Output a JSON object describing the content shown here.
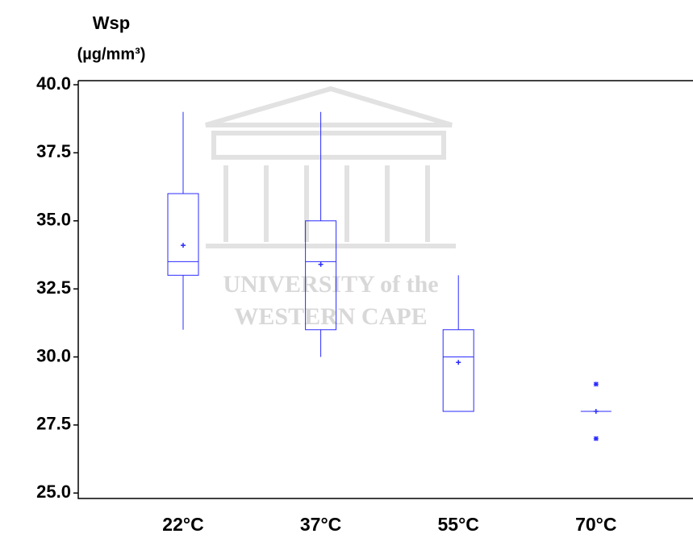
{
  "chart_data": {
    "type": "box",
    "y_label": [
      "Wsp",
      "(µg/mm³)"
    ],
    "watermark": [
      "UNIVERSITY of the",
      "WESTERN CAPE"
    ],
    "categories": [
      "22°C",
      "37°C",
      "55°C",
      "70°C"
    ],
    "color": "#2b2bff",
    "boxes": [
      {
        "whislo": 31,
        "q1": 33,
        "median": 33.5,
        "q3": 36,
        "whishi": 39,
        "mean": 34.1,
        "fliers": []
      },
      {
        "whislo": 30,
        "q1": 31,
        "median": 33.5,
        "q3": 35,
        "whishi": 39,
        "mean": 33.4,
        "fliers": []
      },
      {
        "whislo": 28,
        "q1": 28,
        "median": 30,
        "q3": 31,
        "whishi": 33,
        "mean": 29.8,
        "fliers": []
      },
      {
        "whislo": 28,
        "q1": 28,
        "median": 28,
        "q3": 28,
        "whishi": 28,
        "mean": 28,
        "fliers": [
          29,
          27
        ]
      }
    ],
    "ylim": [
      24.8,
      40.15
    ],
    "yticks": [
      {
        "value": 25,
        "label": "25.0"
      },
      {
        "value": 27.5,
        "label": "27.5"
      },
      {
        "value": 30,
        "label": "30.0"
      },
      {
        "value": 32.5,
        "label": "32.5"
      },
      {
        "value": 35,
        "label": "35.0"
      },
      {
        "value": 37.5,
        "label": "37.5"
      },
      {
        "value": 40,
        "label": "40.0"
      }
    ]
  }
}
